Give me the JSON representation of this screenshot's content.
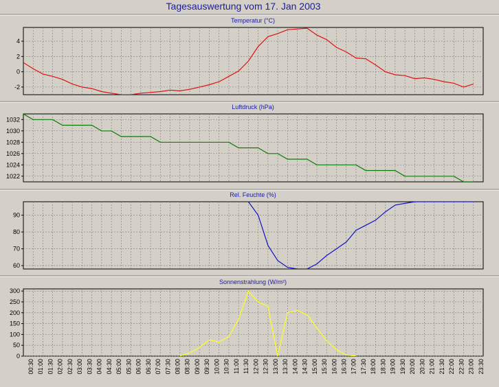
{
  "title": "Tagesauswertung vom 17. Jan 2003",
  "x_labels": [
    "00:30",
    "01:00",
    "01:30",
    "02:00",
    "02:30",
    "03:00",
    "03:30",
    "04:00",
    "04:30",
    "05:00",
    "05:30",
    "06:00",
    "06:30",
    "07:00",
    "07:30",
    "08:00",
    "08:30",
    "09:00",
    "09:30",
    "10:00",
    "10:30",
    "11:00",
    "11:30",
    "12:00",
    "12:30",
    "13:00",
    "13:30",
    "14:00",
    "14:30",
    "15:00",
    "15:30",
    "16:00",
    "16:30",
    "17:00",
    "17:30",
    "18:00",
    "18:30",
    "19:00",
    "19:30",
    "20:00",
    "20:30",
    "21:00",
    "21:30",
    "22:00",
    "22:30",
    "23:00",
    "23:30"
  ],
  "colors": {
    "background": "#d4d0c8",
    "plot_bg": "#d4d0c8",
    "grid": "#7a7a7a",
    "title": "#1a1aa8"
  },
  "chart_data": [
    {
      "type": "line",
      "title": "Temperatur (°C)",
      "color": "#e01010",
      "ylim": [
        -3,
        5.8
      ],
      "yticks": [
        -2,
        0,
        2,
        4
      ],
      "x": [
        "00:30",
        "01:00",
        "01:30",
        "02:00",
        "02:30",
        "03:00",
        "03:30",
        "04:00",
        "04:30",
        "05:00",
        "05:30",
        "06:00",
        "06:30",
        "07:00",
        "07:30",
        "08:00",
        "08:30",
        "09:00",
        "09:30",
        "10:00",
        "10:30",
        "11:00",
        "11:30",
        "12:00",
        "12:30",
        "13:00",
        "13:30",
        "14:00",
        "14:30",
        "15:00",
        "15:30",
        "16:00",
        "16:30",
        "17:00",
        "17:30",
        "18:00",
        "18:30",
        "19:00",
        "19:30",
        "20:00",
        "20:30",
        "21:00",
        "21:30",
        "22:00",
        "22:30",
        "23:00",
        "23:30"
      ],
      "values": [
        1.2,
        0.4,
        -0.3,
        -0.6,
        -1.0,
        -1.6,
        -2.0,
        -2.2,
        -2.6,
        -2.8,
        -3.0,
        -3.0,
        -2.8,
        -2.7,
        -2.6,
        -2.4,
        -2.5,
        -2.3,
        -2.0,
        -1.7,
        -1.3,
        -0.6,
        0.1,
        1.4,
        3.3,
        4.6,
        5.0,
        5.5,
        5.6,
        5.7,
        4.8,
        4.2,
        3.2,
        2.6,
        1.8,
        1.7,
        0.9,
        0.0,
        -0.4,
        -0.5,
        -0.9,
        -0.8,
        -1.0,
        -1.3,
        -1.5,
        -2.0,
        -1.6
      ]
    },
    {
      "type": "line",
      "title": "Luftdruck (hPa)",
      "color": "#0a7a0a",
      "ylim": [
        1021,
        1033
      ],
      "yticks": [
        1022,
        1024,
        1026,
        1028,
        1030,
        1032
      ],
      "x": [
        "00:30",
        "01:00",
        "01:30",
        "02:00",
        "02:30",
        "03:00",
        "03:30",
        "04:00",
        "04:30",
        "05:00",
        "05:30",
        "06:00",
        "06:30",
        "07:00",
        "07:30",
        "08:00",
        "08:30",
        "09:00",
        "09:30",
        "10:00",
        "10:30",
        "11:00",
        "11:30",
        "12:00",
        "12:30",
        "13:00",
        "13:30",
        "14:00",
        "14:30",
        "15:00",
        "15:30",
        "16:00",
        "16:30",
        "17:00",
        "17:30",
        "18:00",
        "18:30",
        "19:00",
        "19:30",
        "20:00",
        "20:30",
        "21:00",
        "21:30",
        "22:00",
        "22:30",
        "23:00",
        "23:30"
      ],
      "values": [
        1033,
        1032,
        1032,
        1032,
        1031,
        1031,
        1031,
        1031,
        1030,
        1030,
        1029,
        1029,
        1029,
        1029,
        1028,
        1028,
        1028,
        1028,
        1028,
        1028,
        1028,
        1028,
        1027,
        1027,
        1027,
        1026,
        1026,
        1025,
        1025,
        1025,
        1024,
        1024,
        1024,
        1024,
        1024,
        1023,
        1023,
        1023,
        1023,
        1022,
        1022,
        1022,
        1022,
        1022,
        1022,
        1021,
        1021
      ]
    },
    {
      "type": "line",
      "title": "Rel. Feuchte (%)",
      "color": "#1010c8",
      "ylim": [
        58,
        98
      ],
      "yticks": [
        60,
        70,
        80,
        90
      ],
      "x": [
        "12:00",
        "12:30",
        "13:00",
        "13:30",
        "14:00",
        "14:30",
        "15:00",
        "15:30",
        "16:00",
        "16:30",
        "17:00",
        "17:30",
        "18:00",
        "18:30",
        "19:00",
        "19:30",
        "20:00",
        "20:30",
        "21:00",
        "21:30",
        "22:00",
        "22:30",
        "23:00",
        "23:30"
      ],
      "values": [
        98,
        90,
        72,
        63,
        59,
        58,
        58,
        61,
        66,
        70,
        74,
        81,
        84,
        87,
        92,
        96,
        97,
        98,
        98,
        98,
        98,
        98,
        98,
        98
      ]
    },
    {
      "type": "line",
      "title": "Sonnenstrahlung (W/m²)",
      "color": "#ffff20",
      "ylim": [
        0,
        310
      ],
      "yticks": [
        0,
        50,
        100,
        150,
        200,
        250,
        300
      ],
      "x": [
        "08:30",
        "09:00",
        "09:30",
        "10:00",
        "10:30",
        "11:00",
        "11:30",
        "12:00",
        "12:30",
        "13:00",
        "13:30",
        "14:00",
        "14:30",
        "15:00",
        "15:30",
        "16:00",
        "16:30",
        "17:00",
        "17:30"
      ],
      "values": [
        0,
        15,
        40,
        75,
        65,
        90,
        170,
        300,
        250,
        230,
        0,
        200,
        210,
        190,
        130,
        70,
        30,
        5,
        0
      ]
    }
  ]
}
